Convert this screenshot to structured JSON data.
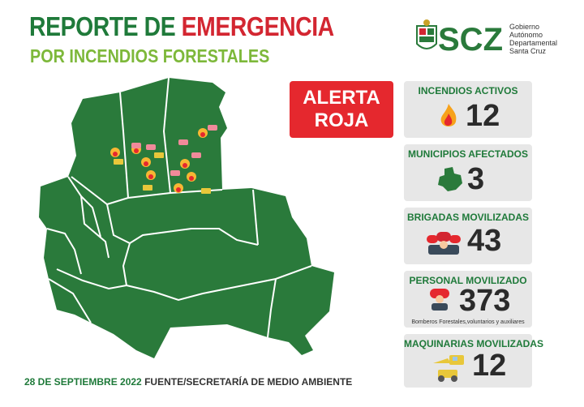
{
  "header": {
    "title_part1": "REPORTE DE ",
    "title_part2": "EMERGENCIA",
    "subtitle": "POR INCENDIOS FORESTALES"
  },
  "logo": {
    "letters": "SCZ",
    "line1": "Gobierno",
    "line2": "Autónomo",
    "line3": "Departamental",
    "line4": "Santa Cruz"
  },
  "alert": {
    "line1": "ALERTA",
    "line2": "ROJA"
  },
  "stats": [
    {
      "label": "INCENDIOS ACTIVOS",
      "value": "12",
      "icon": "fire-icon"
    },
    {
      "label": "MUNICIPIOS AFECTADOS",
      "value": "3",
      "icon": "map-region-icon"
    },
    {
      "label": "BRIGADAS MOVILIZADAS",
      "value": "43",
      "icon": "firefighter-group-icon"
    },
    {
      "label": "PERSONAL MOVILIZADO",
      "value": "373",
      "icon": "firefighter-icon",
      "note": "Bomberos Forestales,voluntarios y auxiliares"
    },
    {
      "label": "MAQUINARIAS MOVILIZADAS",
      "value": "12",
      "icon": "machinery-icon"
    }
  ],
  "footer": {
    "date": "28 DE SEPTIEMBRE 2022",
    "source": " FUENTE/SECRETARÍA DE MEDIO AMBIENTE"
  },
  "colors": {
    "green": "#1f7a3a",
    "map_green": "#2a7a3b",
    "light_green": "#7db83a",
    "red": "#e5282e",
    "card_bg": "#e7e7e7"
  }
}
